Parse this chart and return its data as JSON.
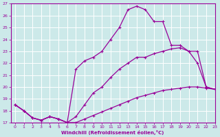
{
  "xlabel": "Windchill (Refroidissement éolien,°C)",
  "xlim": [
    -0.5,
    23
  ],
  "ylim": [
    17,
    27
  ],
  "yticks": [
    17,
    18,
    19,
    20,
    21,
    22,
    23,
    24,
    25,
    26,
    27
  ],
  "xticks": [
    0,
    1,
    2,
    3,
    4,
    5,
    6,
    7,
    8,
    9,
    10,
    11,
    12,
    13,
    14,
    15,
    16,
    17,
    18,
    19,
    20,
    21,
    22,
    23
  ],
  "bg_color": "#cce9e9",
  "grid_color": "#b8d8d8",
  "line_color": "#990099",
  "lines": [
    {
      "x": [
        0,
        1,
        2,
        3,
        4,
        5,
        6,
        7,
        8,
        9,
        10,
        11,
        12,
        13,
        14,
        15,
        16,
        17,
        18,
        19,
        20,
        21,
        22,
        23
      ],
      "y": [
        18.5,
        18.0,
        17.4,
        17.2,
        17.5,
        17.3,
        17.0,
        17.0,
        17.3,
        17.6,
        17.9,
        18.2,
        18.5,
        18.8,
        19.1,
        19.3,
        19.5,
        19.7,
        19.8,
        19.9,
        20.0,
        20.0,
        19.9,
        19.8
      ]
    },
    {
      "x": [
        0,
        1,
        2,
        3,
        4,
        5,
        6,
        7,
        8,
        9,
        10,
        11,
        12,
        13,
        14,
        15,
        16,
        17,
        18,
        19,
        20,
        21,
        22,
        23
      ],
      "y": [
        18.5,
        18.0,
        17.4,
        17.2,
        17.5,
        17.3,
        17.0,
        17.5,
        18.5,
        19.5,
        20.0,
        20.8,
        21.5,
        22.0,
        22.5,
        22.5,
        22.8,
        23.0,
        23.2,
        23.3,
        23.0,
        22.0,
        20.0,
        19.8
      ]
    },
    {
      "x": [
        0,
        1,
        2,
        3,
        4,
        5,
        6,
        7,
        8,
        9,
        10,
        11,
        12,
        13,
        14,
        15,
        16,
        17,
        18,
        19,
        20,
        21,
        22,
        23
      ],
      "y": [
        18.5,
        18.0,
        17.4,
        17.2,
        17.5,
        17.3,
        17.0,
        21.5,
        22.2,
        22.5,
        23.0,
        24.0,
        25.0,
        26.5,
        26.8,
        26.5,
        25.5,
        25.5,
        23.5,
        23.5,
        23.0,
        23.0,
        20.0,
        19.8
      ]
    }
  ]
}
